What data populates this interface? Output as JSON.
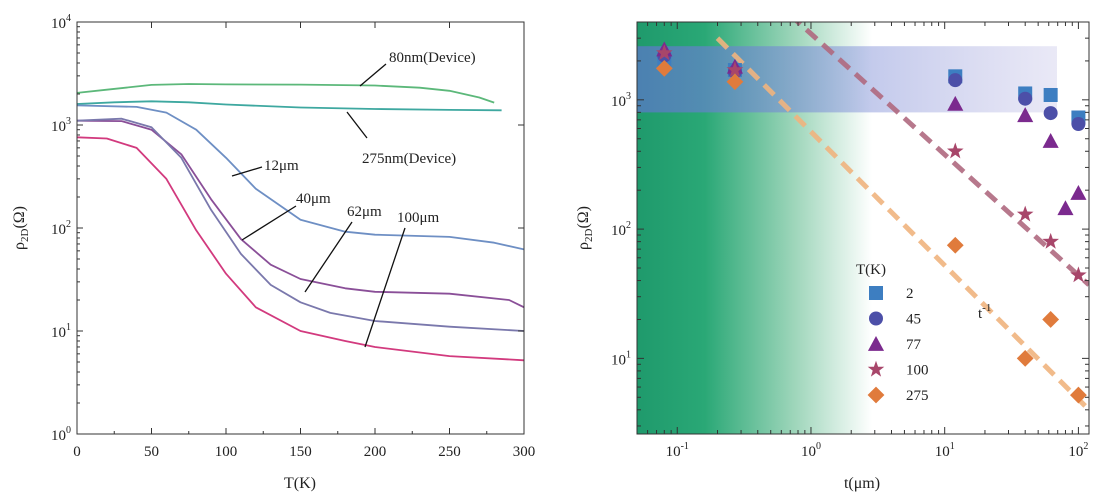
{
  "chart_data": [
    {
      "type": "line",
      "panel": "left",
      "xlabel": "T(K)",
      "ylabel": "ρ2D(Ω)",
      "xlim": [
        0,
        300
      ],
      "ylim": [
        1,
        10000
      ],
      "yscale": "log",
      "x_ticks": [
        0,
        50,
        100,
        150,
        200,
        250,
        300
      ],
      "y_ticks": [
        {
          "value": 1,
          "base": "10",
          "exp": "0"
        },
        {
          "value": 10,
          "base": "10",
          "exp": "1"
        },
        {
          "value": 100,
          "base": "10",
          "exp": "2"
        },
        {
          "value": 1000,
          "base": "10",
          "exp": "3"
        },
        {
          "value": 10000,
          "base": "10",
          "exp": "4"
        }
      ],
      "series": [
        {
          "name": "80nm(Device)",
          "color": "#5cb87a",
          "x": [
            0,
            20,
            50,
            75,
            100,
            150,
            200,
            230,
            250,
            270,
            280
          ],
          "y": [
            2050,
            2200,
            2450,
            2500,
            2480,
            2470,
            2420,
            2300,
            2150,
            1850,
            1650
          ]
        },
        {
          "name": "275nm(Device)",
          "color": "#3ea8a0",
          "x": [
            0,
            25,
            50,
            75,
            100,
            150,
            200,
            250,
            285
          ],
          "y": [
            1600,
            1660,
            1700,
            1660,
            1580,
            1480,
            1430,
            1400,
            1390
          ]
        },
        {
          "name": "12μm",
          "color": "#6e8fc4",
          "x": [
            0,
            40,
            60,
            80,
            100,
            120,
            150,
            180,
            200,
            250,
            280,
            300
          ],
          "y": [
            1550,
            1500,
            1320,
            900,
            480,
            240,
            120,
            92,
            86,
            82,
            72,
            62
          ]
        },
        {
          "name": "40μm",
          "color": "#8a4f98",
          "x": [
            0,
            30,
            50,
            70,
            90,
            110,
            130,
            150,
            180,
            200,
            250,
            290,
            300
          ],
          "y": [
            1100,
            1090,
            900,
            520,
            190,
            78,
            44,
            32,
            26,
            24,
            23,
            20,
            17
          ]
        },
        {
          "name": "62μm",
          "color": "#7a78ac",
          "x": [
            0,
            30,
            50,
            70,
            90,
            110,
            130,
            150,
            170,
            200,
            250,
            300
          ],
          "y": [
            1100,
            1150,
            950,
            480,
            150,
            56,
            28,
            19,
            15,
            12.5,
            11,
            10
          ]
        },
        {
          "name": "100μm",
          "color": "#d23a7e",
          "x": [
            0,
            20,
            40,
            60,
            80,
            100,
            120,
            150,
            180,
            200,
            250,
            300
          ],
          "y": [
            760,
            740,
            600,
            300,
            95,
            36,
            17,
            10,
            8,
            7,
            5.7,
            5.2
          ]
        }
      ],
      "annotations": [
        "80nm(Device)",
        "275nm(Device)",
        "12μm",
        "40μm",
        "62μm",
        "100μm"
      ]
    },
    {
      "type": "scatter",
      "panel": "right",
      "xlabel": "t(μm)",
      "ylabel": "ρ2D(Ω)",
      "xscale": "log",
      "yscale": "log",
      "xlim": [
        0.05,
        120
      ],
      "ylim": [
        2.6,
        4000
      ],
      "x_ticks": [
        {
          "value": 0.1,
          "base": "10",
          "exp": "-1"
        },
        {
          "value": 1,
          "base": "10",
          "exp": "0"
        },
        {
          "value": 10,
          "base": "10",
          "exp": "1"
        },
        {
          "value": 100,
          "base": "10",
          "exp": "2"
        }
      ],
      "y_ticks": [
        {
          "value": 10,
          "base": "10",
          "exp": "1"
        },
        {
          "value": 100,
          "base": "10",
          "exp": "2"
        },
        {
          "value": 1000,
          "base": "10",
          "exp": "3"
        }
      ],
      "legend_title": "T(K)",
      "legend_position": "bottom-left",
      "series": [
        {
          "name": "2",
          "marker": "square",
          "color": "#3d7ec1",
          "x": [
            0.08,
            0.27,
            12,
            40,
            62,
            100
          ],
          "y": [
            2050,
            1700,
            1520,
            1120,
            1090,
            730
          ]
        },
        {
          "name": "45",
          "marker": "circle",
          "color": "#4c4fa8",
          "x": [
            0.08,
            0.27,
            12,
            40,
            62,
            100
          ],
          "y": [
            2200,
            1650,
            1420,
            1020,
            790,
            650
          ]
        },
        {
          "name": "77",
          "marker": "triangle",
          "color": "#7b2a8e",
          "x": [
            0.08,
            0.27,
            12,
            40,
            62,
            80,
            100
          ],
          "y": [
            2450,
            1800,
            930,
            760,
            480,
            145,
            190
          ]
        },
        {
          "name": "100",
          "marker": "star",
          "color": "#a8466a",
          "x": [
            0.08,
            0.27,
            12,
            40,
            62,
            100
          ],
          "y": [
            2300,
            1700,
            400,
            130,
            80,
            44
          ]
        },
        {
          "name": "275",
          "marker": "diamond",
          "color": "#e07b3c",
          "x": [
            0.08,
            0.27,
            12,
            40,
            62,
            100
          ],
          "y": [
            1750,
            1380,
            75,
            10,
            20,
            5.2
          ]
        }
      ],
      "guide_lines": [
        {
          "label": "t-1",
          "color": "#b06a80",
          "slope": -1,
          "points": [
            [
              0.3,
              10000
            ],
            [
              120,
              37
            ]
          ]
        },
        {
          "label": "",
          "color": "#f0b47f",
          "slope": -1,
          "points": [
            [
              0.2,
              3000
            ],
            [
              120,
              4
            ]
          ]
        }
      ],
      "guide_label": {
        "base": "t",
        "exp": "-1"
      },
      "shaded_band": {
        "y_range": [
          800,
          2600
        ],
        "color": "#8c96d8"
      },
      "background_gradient": {
        "from_color": "#1f9a6c",
        "to_color": "#ffffff",
        "direction": "left-to-right"
      }
    }
  ]
}
